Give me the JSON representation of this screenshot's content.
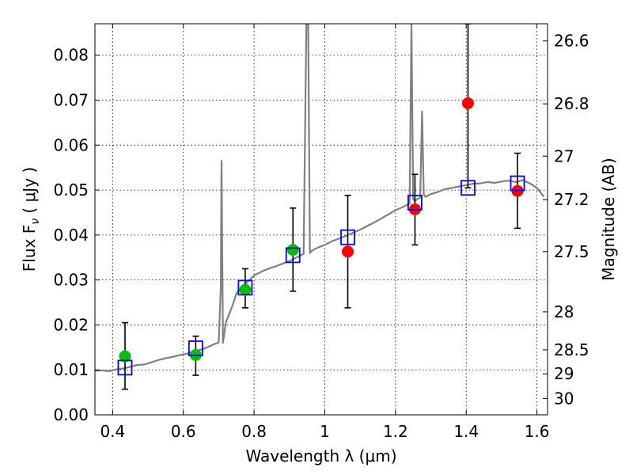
{
  "chart_data": {
    "type": "scatter",
    "xlabel": "Wavelength  λ (μm)",
    "ylabel": "Flux  F",
    "ylabel_sub": "ν",
    "ylabel_unit": "  ( μJy )",
    "y2label": "Magnitude (AB)",
    "xlim": [
      0.35,
      1.63
    ],
    "ylim": [
      0.0,
      0.087
    ],
    "grid": true,
    "x_ticks": [
      0.4,
      0.6,
      0.8,
      1.0,
      1.2,
      1.4,
      1.6
    ],
    "x_tick_labels": [
      "0.4",
      "0.6",
      "0.8",
      "1",
      "1.2",
      "1.4",
      "1.6"
    ],
    "y_ticks": [
      0.0,
      0.01,
      0.02,
      0.03,
      0.04,
      0.05,
      0.06,
      0.07,
      0.08
    ],
    "y_tick_labels": [
      "0.00",
      "0.01",
      "0.02",
      "0.03",
      "0.04",
      "0.05",
      "0.06",
      "0.07",
      "0.08"
    ],
    "y2_ticks": [
      26.6,
      26.8,
      27,
      27.2,
      27.5,
      28,
      28.5,
      29,
      30
    ],
    "y2_tick_labels": [
      "26.6",
      "26.8",
      "27",
      "27.2",
      "27.5",
      "28",
      "28.5",
      "29",
      "30"
    ],
    "series": [
      {
        "kind": "line",
        "color": "#808080",
        "x": [
          0.35,
          0.37,
          0.39,
          0.41,
          0.43,
          0.45,
          0.47,
          0.49,
          0.51,
          0.53,
          0.55,
          0.57,
          0.59,
          0.61,
          0.63,
          0.65,
          0.67,
          0.69,
          0.7,
          0.706,
          0.708,
          0.712,
          0.72,
          0.73,
          0.74,
          0.75,
          0.76,
          0.77,
          0.78,
          0.79,
          0.8,
          0.82,
          0.84,
          0.86,
          0.88,
          0.9,
          0.92,
          0.94,
          0.948,
          0.953,
          0.958,
          0.965,
          0.98,
          1.0,
          1.02,
          1.04,
          1.06,
          1.08,
          1.1,
          1.12,
          1.14,
          1.16,
          1.18,
          1.2,
          1.22,
          1.24,
          1.245,
          1.25,
          1.255,
          1.26,
          1.27,
          1.275,
          1.28,
          1.285,
          1.3,
          1.32,
          1.34,
          1.36,
          1.38,
          1.4,
          1.42,
          1.44,
          1.46,
          1.48,
          1.5,
          1.52,
          1.54,
          1.56,
          1.58,
          1.6,
          1.62
        ],
        "y": [
          0.0098,
          0.0099,
          0.0097,
          0.0101,
          0.0103,
          0.0107,
          0.0111,
          0.0112,
          0.0117,
          0.0122,
          0.0126,
          0.0129,
          0.0133,
          0.0136,
          0.0141,
          0.0145,
          0.0151,
          0.0158,
          0.0161,
          0.0285,
          0.0565,
          0.016,
          0.0205,
          0.0225,
          0.0245,
          0.027,
          0.028,
          0.0288,
          0.0295,
          0.0302,
          0.031,
          0.0318,
          0.0325,
          0.033,
          0.0336,
          0.0342,
          0.035,
          0.0358,
          0.087,
          0.087,
          0.036,
          0.0366,
          0.0372,
          0.0378,
          0.0386,
          0.0392,
          0.0398,
          0.0405,
          0.0412,
          0.042,
          0.0428,
          0.0437,
          0.0446,
          0.0455,
          0.0462,
          0.047,
          0.087,
          0.048,
          0.0475,
          0.0479,
          0.0483,
          0.0675,
          0.049,
          0.0485,
          0.0491,
          0.0496,
          0.0502,
          0.0505,
          0.0508,
          0.0511,
          0.0514,
          0.0515,
          0.0518,
          0.0516,
          0.0519,
          0.0521,
          0.0518,
          0.0522,
          0.0515,
          0.0505,
          0.0485
        ]
      },
      {
        "kind": "points",
        "marker": "circle",
        "color": "#00c000",
        "x": [
          0.435,
          0.635,
          0.775,
          0.91
        ],
        "y": [
          0.013,
          0.0133,
          0.0278,
          0.0367
        ],
        "yerr_low": [
          0.0057,
          0.0088,
          0.0238,
          0.0275
        ],
        "yerr_high": [
          0.0205,
          0.0175,
          0.0325,
          0.046
        ]
      },
      {
        "kind": "points",
        "marker": "circle",
        "color": "#ff0000",
        "x": [
          1.065,
          1.255,
          1.405,
          1.545
        ],
        "y": [
          0.0363,
          0.0457,
          0.0693,
          0.0498
        ],
        "yerr_low": [
          0.0238,
          0.0378,
          0.0505,
          0.0415
        ],
        "yerr_high": [
          0.0488,
          0.0535,
          0.087,
          0.0582
        ]
      },
      {
        "kind": "points",
        "marker": "square-open",
        "color": "#0000ff",
        "x": [
          0.435,
          0.635,
          0.775,
          0.91,
          1.065,
          1.255,
          1.405,
          1.545
        ],
        "y": [
          0.0105,
          0.0148,
          0.0283,
          0.0355,
          0.0395,
          0.0472,
          0.0505,
          0.0515
        ]
      }
    ]
  }
}
